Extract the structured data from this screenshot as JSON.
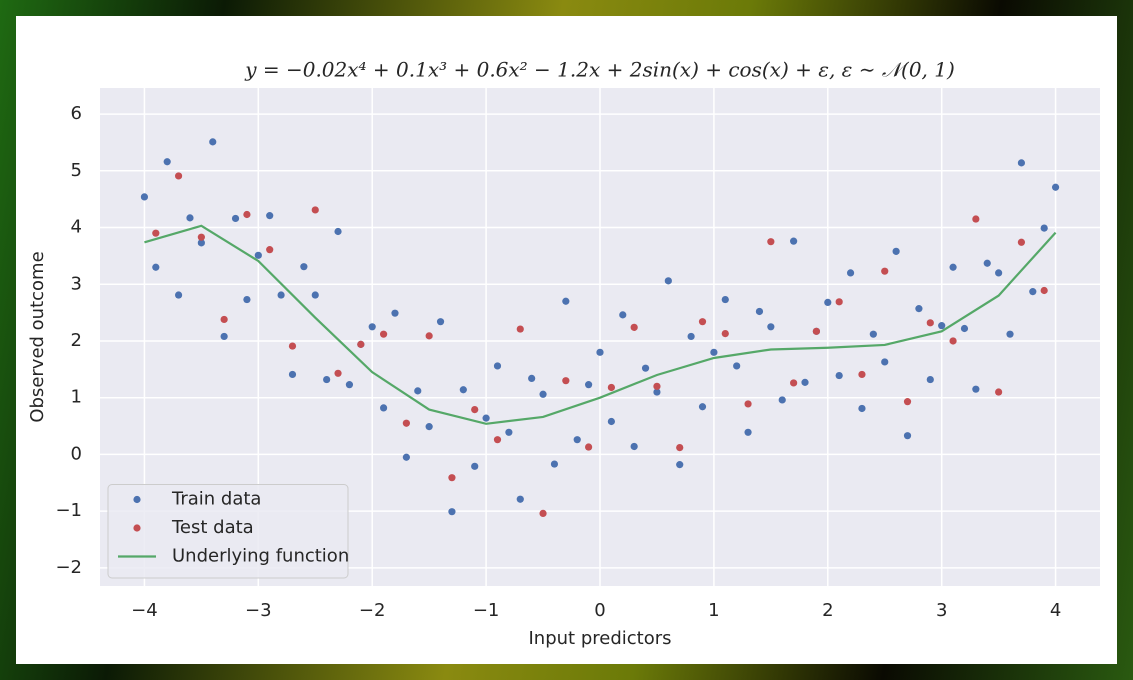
{
  "chart_data": {
    "type": "scatter",
    "title": "y = −0.02x⁴ + 0.1x³ + 0.6x² − 1.2x + 2sin(x) + cos(x) + ε, ε ∼ 𝒩(0, 1)",
    "x_label": "Input predictors",
    "y_label": "Observed outcome",
    "xlim": [
      -4.39,
      4.39
    ],
    "ylim": [
      -2.32,
      6.46
    ],
    "xticks": [
      {
        "value": -4,
        "label": "−4"
      },
      {
        "value": -3,
        "label": "−3"
      },
      {
        "value": -2,
        "label": "−2"
      },
      {
        "value": -1,
        "label": "−1"
      },
      0,
      1,
      2,
      3,
      4
    ],
    "yticks": [
      {
        "value": -2,
        "label": "−2"
      },
      {
        "value": -1,
        "label": "−1"
      },
      0,
      1,
      2,
      3,
      4,
      5,
      6
    ],
    "grid": true,
    "legend": "lower left",
    "series": [
      {
        "name": "Train data",
        "type": "scatter",
        "color": "#4c72b0",
        "x": [
          -4.0,
          -3.9,
          -3.8,
          -3.7,
          -3.6,
          -3.5,
          -3.4,
          -3.3,
          -3.2,
          -3.1,
          -3.0,
          -2.9,
          -2.8,
          -2.7,
          -2.6,
          -2.5,
          -2.4,
          -2.3,
          -2.2,
          -2.1,
          -2.0,
          -1.9,
          -1.8,
          -1.7,
          -1.6,
          -1.5,
          -1.4,
          -1.3,
          -1.2,
          -1.1,
          -1.0,
          -0.9,
          -0.8,
          -0.7,
          -0.6,
          -0.5,
          -0.4,
          -0.3,
          -0.2,
          -0.1,
          0.0,
          0.1,
          0.2,
          0.3,
          0.4,
          0.5,
          0.6,
          0.7,
          0.8,
          0.9,
          1.0,
          1.1,
          1.2,
          1.3,
          1.4,
          1.5,
          1.6,
          1.7,
          1.8,
          1.9,
          2.0,
          2.1,
          2.2,
          2.3,
          2.4,
          2.5,
          2.6,
          2.7,
          2.8,
          2.9,
          3.0,
          3.1,
          3.2,
          3.3,
          3.4,
          3.5,
          3.6,
          3.7,
          3.8,
          3.9,
          4.0
        ],
        "values": [
          4.54,
          3.3,
          5.16,
          2.81,
          4.17,
          3.73,
          5.51,
          2.08,
          4.16,
          2.73,
          3.51,
          4.21,
          2.81,
          1.41,
          3.31,
          2.81,
          1.32,
          3.93,
          1.23,
          1.94,
          2.25,
          0.82,
          2.49,
          -0.05,
          1.12,
          0.49,
          2.34,
          -1.01,
          1.14,
          -0.21,
          0.64,
          1.56,
          0.39,
          -0.79,
          1.34,
          1.06,
          -0.17,
          2.7,
          0.26,
          1.23,
          1.8,
          0.58,
          2.46,
          0.14,
          1.52,
          1.1,
          3.06,
          -0.18,
          2.08,
          0.84,
          1.8,
          2.73,
          1.56,
          0.39,
          2.52,
          2.25,
          0.96,
          3.76,
          1.27,
          2.17,
          2.68,
          1.39,
          3.2,
          0.81,
          2.12,
          1.63,
          3.58,
          0.33,
          2.57,
          1.32,
          2.27,
          3.3,
          2.22,
          1.15,
          3.37,
          3.2,
          2.12,
          5.14,
          2.87,
          3.99,
          4.71
        ]
      },
      {
        "name": "Test data",
        "type": "scatter",
        "color": "#c44e52",
        "x": [
          -3.9,
          -3.7,
          -3.5,
          -3.3,
          -3.1,
          -2.9,
          -2.7,
          -2.5,
          -2.3,
          -2.1,
          -1.9,
          -1.7,
          -1.5,
          -1.3,
          -1.1,
          -0.9,
          -0.7,
          -0.5,
          -0.3,
          -0.1,
          0.1,
          0.3,
          0.5,
          0.7,
          0.9,
          1.1,
          1.3,
          1.5,
          1.7,
          1.9,
          2.1,
          2.3,
          2.5,
          2.7,
          2.9,
          3.1,
          3.3,
          3.5,
          3.7,
          3.9
        ],
        "values": [
          3.9,
          4.91,
          3.83,
          2.38,
          4.23,
          3.61,
          1.91,
          4.31,
          1.43,
          1.94,
          2.12,
          0.55,
          2.09,
          -0.41,
          0.79,
          0.26,
          2.21,
          -1.04,
          1.3,
          0.13,
          1.18,
          2.24,
          1.2,
          0.12,
          2.34,
          2.13,
          0.89,
          3.75,
          1.26,
          2.17,
          2.69,
          1.41,
          3.23,
          0.93,
          2.32,
          2.0,
          4.15,
          1.1,
          3.74,
          2.89
        ]
      },
      {
        "name": "Underlying function",
        "type": "line",
        "color": "#55a868",
        "x": [
          -4,
          -3.5,
          -3,
          -2.5,
          -2,
          -1.5,
          -1,
          -0.5,
          0,
          0.5,
          1,
          1.5,
          2,
          2.5,
          3,
          3.5,
          4
        ],
        "values": [
          3.74,
          4.03,
          3.41,
          2.41,
          1.45,
          0.79,
          0.54,
          0.66,
          1.0,
          1.4,
          1.7,
          1.85,
          1.88,
          1.93,
          2.17,
          2.8,
          3.91
        ]
      }
    ]
  }
}
